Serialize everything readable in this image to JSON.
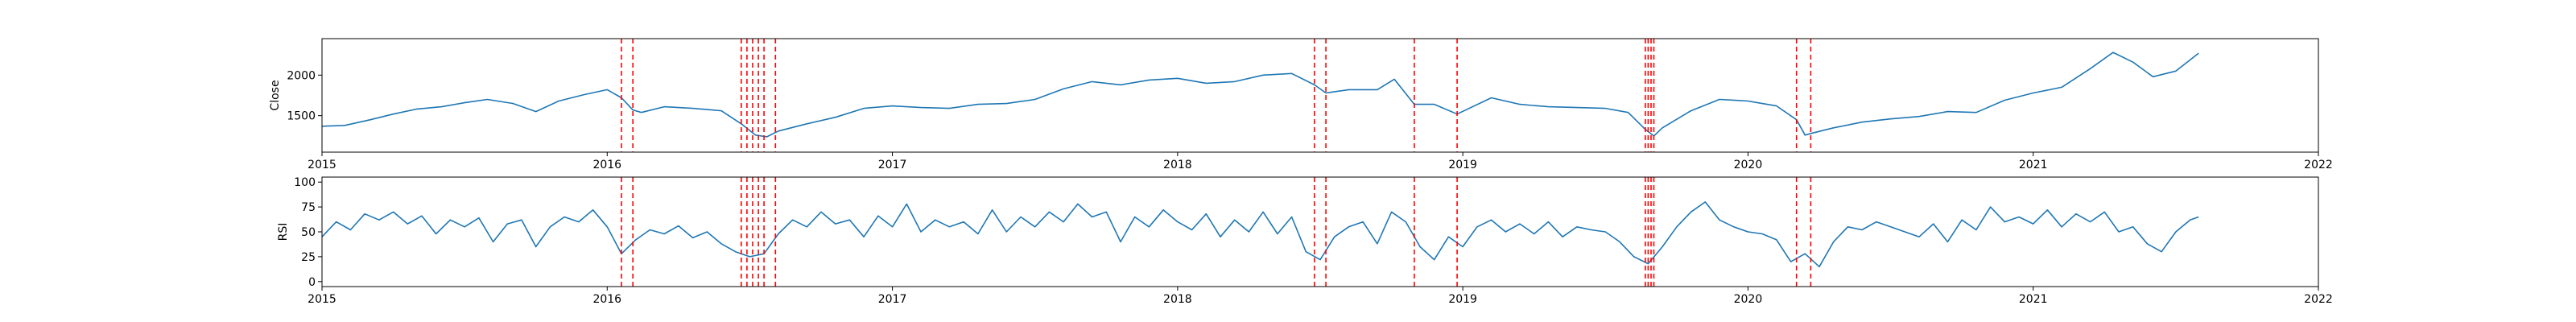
{
  "colors": {
    "series": "#1f77b4",
    "events": "#ff0000",
    "axes": "#000000",
    "background": "#ffffff"
  },
  "chart_data": [
    {
      "type": "line",
      "ylabel": "Close",
      "xlim": [
        2015,
        2022
      ],
      "ylim": [
        1050,
        2450
      ],
      "x_ticks": [
        2015,
        2016,
        2017,
        2018,
        2019,
        2020,
        2021,
        2022
      ],
      "x_tick_labels": [
        "2015",
        "2016",
        "2017",
        "2018",
        "2019",
        "2020",
        "2021",
        "2022"
      ],
      "y_ticks": [
        1500,
        2000
      ],
      "y_tick_labels": [
        "1500",
        "2000"
      ],
      "grid": false,
      "event_lines": [
        2016.05,
        2016.09,
        2016.47,
        2016.49,
        2016.51,
        2016.53,
        2016.55,
        2016.59,
        2018.48,
        2018.52,
        2018.83,
        2018.98,
        2019.64,
        2019.65,
        2019.66,
        2019.67,
        2020.17,
        2020.22
      ],
      "series": [
        {
          "x": [
            2015.0,
            2015.08,
            2015.17,
            2015.25,
            2015.33,
            2015.42,
            2015.5,
            2015.58,
            2015.67,
            2015.75,
            2015.83,
            2015.92,
            2016.0,
            2016.05,
            2016.09,
            2016.12,
            2016.2,
            2016.3,
            2016.4,
            2016.47,
            2016.52,
            2016.56,
            2016.6,
            2016.7,
            2016.8,
            2016.9,
            2017.0,
            2017.1,
            2017.2,
            2017.3,
            2017.4,
            2017.5,
            2017.6,
            2017.7,
            2017.8,
            2017.9,
            2018.0,
            2018.1,
            2018.2,
            2018.3,
            2018.4,
            2018.48,
            2018.52,
            2018.6,
            2018.7,
            2018.76,
            2018.83,
            2018.9,
            2018.98,
            2019.1,
            2019.2,
            2019.3,
            2019.4,
            2019.5,
            2019.58,
            2019.64,
            2019.67,
            2019.7,
            2019.8,
            2019.9,
            2020.0,
            2020.05,
            2020.1,
            2020.17,
            2020.2,
            2020.22,
            2020.3,
            2020.4,
            2020.5,
            2020.6,
            2020.7,
            2020.8,
            2020.9,
            2021.0,
            2021.1,
            2021.2,
            2021.28,
            2021.35,
            2021.42,
            2021.5,
            2021.58
          ],
          "values": [
            1370,
            1380,
            1450,
            1520,
            1580,
            1610,
            1660,
            1700,
            1650,
            1550,
            1680,
            1760,
            1820,
            1720,
            1570,
            1540,
            1610,
            1590,
            1560,
            1400,
            1260,
            1240,
            1310,
            1400,
            1480,
            1590,
            1620,
            1600,
            1590,
            1640,
            1650,
            1700,
            1830,
            1920,
            1880,
            1940,
            1960,
            1900,
            1920,
            2000,
            2020,
            1880,
            1780,
            1820,
            1820,
            1950,
            1640,
            1640,
            1520,
            1720,
            1640,
            1610,
            1600,
            1590,
            1540,
            1330,
            1250,
            1350,
            1560,
            1700,
            1680,
            1650,
            1620,
            1450,
            1260,
            1280,
            1350,
            1420,
            1460,
            1490,
            1550,
            1540,
            1690,
            1780,
            1850,
            2080,
            2280,
            2160,
            1980,
            2050,
            2270
          ]
        }
      ]
    },
    {
      "type": "line",
      "ylabel": "RSI",
      "xlim": [
        2015,
        2022
      ],
      "ylim": [
        -5,
        105
      ],
      "x_ticks": [
        2015,
        2016,
        2017,
        2018,
        2019,
        2020,
        2021,
        2022
      ],
      "x_tick_labels": [
        "2015",
        "2016",
        "2017",
        "2018",
        "2019",
        "2020",
        "2021",
        "2022"
      ],
      "y_ticks": [
        0,
        25,
        50,
        75,
        100
      ],
      "y_tick_labels": [
        "0",
        "25",
        "50",
        "75",
        "100"
      ],
      "grid": false,
      "event_lines": [
        2016.05,
        2016.09,
        2016.47,
        2016.49,
        2016.51,
        2016.53,
        2016.55,
        2016.59,
        2018.48,
        2018.52,
        2018.83,
        2018.98,
        2019.64,
        2019.65,
        2019.66,
        2019.67,
        2020.17,
        2020.22
      ],
      "series": [
        {
          "x": [
            2015.0,
            2015.05,
            2015.1,
            2015.15,
            2015.2,
            2015.25,
            2015.3,
            2015.35,
            2015.4,
            2015.45,
            2015.5,
            2015.55,
            2015.6,
            2015.65,
            2015.7,
            2015.75,
            2015.8,
            2015.85,
            2015.9,
            2015.95,
            2016.0,
            2016.05,
            2016.1,
            2016.15,
            2016.2,
            2016.25,
            2016.3,
            2016.35,
            2016.4,
            2016.45,
            2016.5,
            2016.55,
            2016.6,
            2016.65,
            2016.7,
            2016.75,
            2016.8,
            2016.85,
            2016.9,
            2016.95,
            2017.0,
            2017.05,
            2017.1,
            2017.15,
            2017.2,
            2017.25,
            2017.3,
            2017.35,
            2017.4,
            2017.45,
            2017.5,
            2017.55,
            2017.6,
            2017.65,
            2017.7,
            2017.75,
            2017.8,
            2017.85,
            2017.9,
            2017.95,
            2018.0,
            2018.05,
            2018.1,
            2018.15,
            2018.2,
            2018.25,
            2018.3,
            2018.35,
            2018.4,
            2018.45,
            2018.5,
            2018.55,
            2018.6,
            2018.65,
            2018.7,
            2018.75,
            2018.8,
            2018.85,
            2018.9,
            2018.95,
            2019.0,
            2019.05,
            2019.1,
            2019.15,
            2019.2,
            2019.25,
            2019.3,
            2019.35,
            2019.4,
            2019.45,
            2019.5,
            2019.55,
            2019.6,
            2019.65,
            2019.7,
            2019.75,
            2019.8,
            2019.85,
            2019.9,
            2019.95,
            2020.0,
            2020.05,
            2020.1,
            2020.15,
            2020.2,
            2020.25,
            2020.3,
            2020.35,
            2020.4,
            2020.45,
            2020.5,
            2020.55,
            2020.6,
            2020.65,
            2020.7,
            2020.75,
            2020.8,
            2020.85,
            2020.9,
            2020.95,
            2021.0,
            2021.05,
            2021.1,
            2021.15,
            2021.2,
            2021.25,
            2021.3,
            2021.35,
            2021.4,
            2021.45,
            2021.5,
            2021.55,
            2021.58
          ],
          "values": [
            45,
            60,
            52,
            68,
            62,
            70,
            58,
            66,
            48,
            62,
            55,
            64,
            40,
            58,
            62,
            35,
            55,
            65,
            60,
            72,
            55,
            28,
            42,
            52,
            48,
            56,
            44,
            50,
            38,
            30,
            25,
            28,
            48,
            62,
            55,
            70,
            58,
            62,
            45,
            66,
            55,
            78,
            50,
            62,
            55,
            60,
            48,
            72,
            50,
            65,
            55,
            70,
            60,
            78,
            65,
            70,
            40,
            65,
            55,
            72,
            60,
            52,
            68,
            45,
            62,
            50,
            70,
            48,
            65,
            30,
            22,
            45,
            55,
            60,
            38,
            70,
            60,
            35,
            22,
            45,
            35,
            55,
            62,
            50,
            58,
            48,
            60,
            45,
            55,
            52,
            50,
            40,
            25,
            18,
            35,
            55,
            70,
            80,
            62,
            55,
            50,
            48,
            42,
            20,
            28,
            15,
            40,
            55,
            52,
            60,
            55,
            50,
            45,
            58,
            40,
            62,
            52,
            75,
            60,
            65,
            58,
            72,
            55,
            68,
            60,
            70,
            50,
            55,
            38,
            30,
            50,
            62,
            65
          ]
        }
      ]
    }
  ]
}
